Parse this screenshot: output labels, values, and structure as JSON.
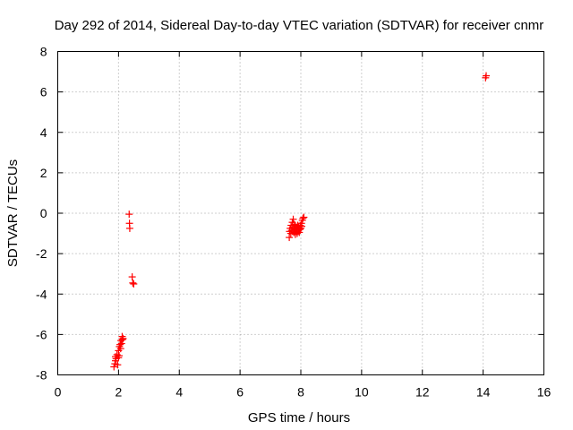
{
  "chart_data": {
    "type": "scatter",
    "title": "Day 292 of 2014, Sidereal Day-to-day VTEC variation (SDTVAR) for receiver cnmr",
    "xlabel": "GPS time / hours",
    "ylabel": "SDTVAR / TECUs",
    "xlim": [
      0,
      16
    ],
    "ylim": [
      -8,
      8
    ],
    "x_ticks": [
      "0",
      "2",
      "4",
      "6",
      "8",
      "10",
      "12",
      "14",
      "16"
    ],
    "y_ticks": [
      "-8",
      "-6",
      "-4",
      "-2",
      "0",
      "2",
      "4",
      "6",
      "8"
    ],
    "grid": true,
    "marker": "plus",
    "color": "#ff0000",
    "points": [
      [
        1.85,
        -7.6
      ],
      [
        1.88,
        -7.45
      ],
      [
        1.9,
        -7.3
      ],
      [
        1.9,
        -7.1
      ],
      [
        1.92,
        -7.2
      ],
      [
        1.95,
        -7.0
      ],
      [
        1.97,
        -7.5
      ],
      [
        2.0,
        -7.15
      ],
      [
        2.0,
        -6.8
      ],
      [
        2.02,
        -7.05
      ],
      [
        2.03,
        -6.6
      ],
      [
        2.05,
        -6.5
      ],
      [
        2.07,
        -6.7
      ],
      [
        2.08,
        -6.3
      ],
      [
        2.1,
        -6.45
      ],
      [
        2.12,
        -6.1
      ],
      [
        2.13,
        -6.25
      ],
      [
        2.15,
        -6.2
      ],
      [
        2.35,
        -0.05
      ],
      [
        2.36,
        -0.5
      ],
      [
        2.37,
        -0.75
      ],
      [
        2.45,
        -3.15
      ],
      [
        2.47,
        -3.45
      ],
      [
        2.5,
        -3.5
      ],
      [
        7.62,
        -1.2
      ],
      [
        7.63,
        -0.9
      ],
      [
        7.65,
        -0.75
      ],
      [
        7.67,
        -1.0
      ],
      [
        7.68,
        -0.6
      ],
      [
        7.7,
        -0.85
      ],
      [
        7.72,
        -0.45
      ],
      [
        7.73,
        -0.7
      ],
      [
        7.75,
        -0.3
      ],
      [
        7.77,
        -0.95
      ],
      [
        7.78,
        -0.55
      ],
      [
        7.8,
        -0.8
      ],
      [
        7.82,
        -1.05
      ],
      [
        7.83,
        -0.65
      ],
      [
        7.85,
        -0.9
      ],
      [
        7.87,
        -0.75
      ],
      [
        7.88,
        -1.0
      ],
      [
        7.9,
        -0.6
      ],
      [
        7.92,
        -0.85
      ],
      [
        7.93,
        -0.7
      ],
      [
        7.95,
        -0.95
      ],
      [
        7.97,
        -0.8
      ],
      [
        7.98,
        -0.6
      ],
      [
        8.0,
        -0.75
      ],
      [
        8.02,
        -0.5
      ],
      [
        8.03,
        -0.65
      ],
      [
        8.05,
        -0.35
      ],
      [
        8.07,
        -0.25
      ],
      [
        8.1,
        -0.2
      ],
      [
        14.08,
        6.7
      ],
      [
        14.1,
        6.8
      ]
    ]
  }
}
